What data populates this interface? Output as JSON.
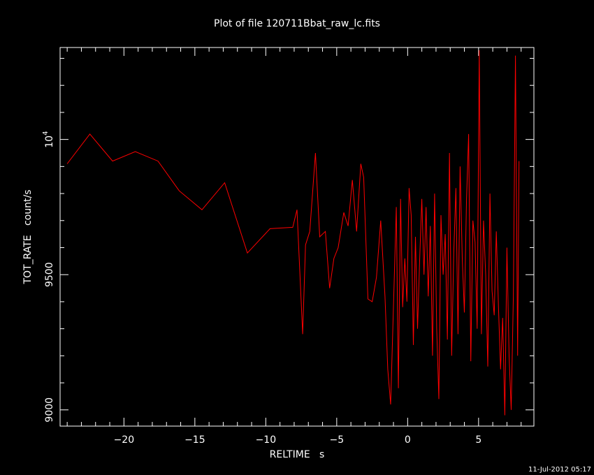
{
  "chart_data": {
    "type": "line",
    "title": "Plot of file 120711Bbat_raw_lc.fits",
    "xlabel": "RELTIME   s",
    "ylabel": "TOT_RATE   count/s",
    "xlim": [
      -24.5,
      8.9
    ],
    "ylim": [
      8940,
      10340
    ],
    "grid": false,
    "line_color": "#ff0000",
    "axis_color": "#ffffff",
    "background": "#000000",
    "x_major_ticks": [
      -20,
      -15,
      -10,
      -5,
      0,
      5
    ],
    "x_tick_labels": [
      "−20",
      "−15",
      "−10",
      "−5",
      "0",
      "5"
    ],
    "y_labeled_ticks": [
      {
        "value": 9000,
        "label": "9000"
      },
      {
        "value": 9500,
        "label": "9500"
      },
      {
        "value": 10000,
        "label": "10",
        "exponent": "4"
      }
    ],
    "series": [
      {
        "x": [
          -24.0,
          -22.4,
          -20.8,
          -19.2,
          -17.6,
          -16.1,
          -14.5,
          -12.9,
          -11.3,
          -9.7,
          -8.1,
          -7.8,
          -7.4,
          -7.2,
          -6.9,
          -6.5,
          -6.2,
          -5.8,
          -5.5,
          -5.2,
          -4.9,
          -4.5,
          -4.2,
          -3.9,
          -3.6,
          -3.3,
          -3.1,
          -2.8,
          -2.5,
          -2.2,
          -1.9,
          -1.6,
          -1.4,
          -1.2,
          -1.0,
          -0.8,
          -0.65,
          -0.5,
          -0.35,
          -0.2,
          -0.05,
          0.1,
          0.25,
          0.4,
          0.55,
          0.7,
          0.85,
          1.0,
          1.15,
          1.3,
          1.45,
          1.6,
          1.75,
          1.9,
          2.05,
          2.2,
          2.35,
          2.5,
          2.65,
          2.8,
          2.95,
          3.1,
          3.25,
          3.4,
          3.55,
          3.7,
          3.85,
          4.0,
          4.15,
          4.3,
          4.45,
          4.6,
          4.75,
          4.9,
          5.05,
          5.2,
          5.35,
          5.5,
          5.65,
          5.8,
          5.95,
          6.1,
          6.25,
          6.4,
          6.55,
          6.7,
          6.85,
          7.0,
          7.15,
          7.3,
          7.45,
          7.6,
          7.75,
          7.85
        ],
        "values": [
          9910,
          10020,
          9920,
          9955,
          9920,
          9810,
          9740,
          9840,
          9580,
          9670,
          9675,
          9740,
          9280,
          9610,
          9660,
          9950,
          9640,
          9660,
          9450,
          9560,
          9600,
          9730,
          9680,
          9850,
          9660,
          9910,
          9860,
          9410,
          9400,
          9490,
          9700,
          9420,
          9150,
          9020,
          9380,
          9750,
          9080,
          9780,
          9380,
          9560,
          9400,
          9820,
          9720,
          9240,
          9640,
          9300,
          9560,
          9780,
          9500,
          9750,
          9420,
          9680,
          9200,
          9800,
          9300,
          9040,
          9720,
          9500,
          9650,
          9260,
          9950,
          9200,
          9580,
          9820,
          9280,
          9900,
          9560,
          9360,
          9780,
          10020,
          9180,
          9700,
          9620,
          9300,
          10330,
          9280,
          9700,
          9500,
          9160,
          9800,
          9440,
          9350,
          9660,
          9380,
          9150,
          9340,
          8980,
          9600,
          9200,
          9000,
          9420,
          10310,
          9200,
          9920
        ]
      }
    ]
  },
  "footer": {
    "timestamp": "11-Jul-2012 05:17"
  }
}
